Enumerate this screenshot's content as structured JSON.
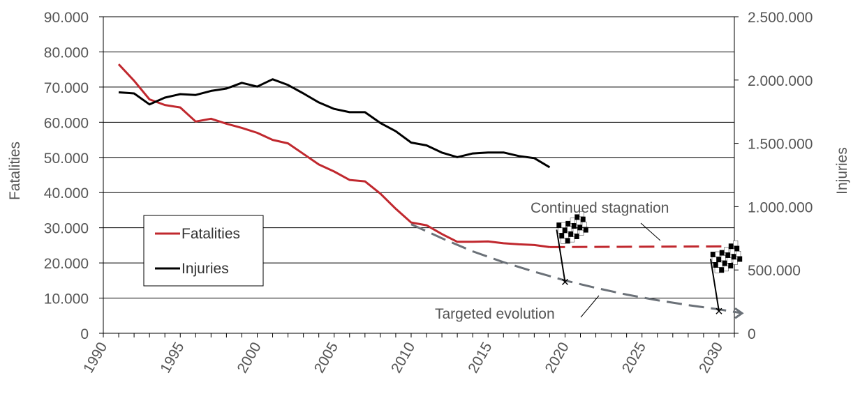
{
  "chart_data": {
    "type": "line",
    "xlabel": "",
    "xlim": [
      1990,
      2031
    ],
    "x_ticks": [
      "1990",
      "1995",
      "2000",
      "2005",
      "2010",
      "2015",
      "2020",
      "2025",
      "2030"
    ],
    "y_left": {
      "label": "Fatalities",
      "ylim": [
        0,
        90000
      ],
      "ticks": [
        "0",
        "10.000",
        "20.000",
        "30.000",
        "40.000",
        "50.000",
        "60.000",
        "70.000",
        "80.000",
        "90.000"
      ]
    },
    "y_right": {
      "label": "Injuries",
      "ylim": [
        0,
        2500000
      ],
      "ticks": [
        "0",
        "500.000",
        "1.000.000",
        "1.500.000",
        "2.000.000",
        "2.500.000"
      ]
    },
    "grid": true,
    "legend": {
      "placement": "left",
      "entries": [
        {
          "label": "Fatalities",
          "color": "#c0282e"
        },
        {
          "label": "Injuries",
          "color": "#000000"
        }
      ]
    },
    "series": [
      {
        "name": "Fatalities",
        "axis": "left",
        "color": "#c0282e",
        "x": [
          1991,
          1992,
          1993,
          1994,
          1995,
          1996,
          1997,
          1998,
          1999,
          2000,
          2001,
          2002,
          2003,
          2004,
          2005,
          2006,
          2007,
          2008,
          2009,
          2010,
          2011,
          2012,
          2013,
          2014,
          2015,
          2016,
          2017,
          2018,
          2019
        ],
        "values": [
          76500,
          71800,
          66500,
          64900,
          64200,
          60200,
          61000,
          59600,
          58400,
          57000,
          55000,
          54000,
          51000,
          48000,
          46000,
          43600,
          43200,
          39700,
          35400,
          31500,
          30700,
          28200,
          26000,
          26000,
          26100,
          25600,
          25300,
          25100,
          24500
        ]
      },
      {
        "name": "Injuries",
        "axis": "right",
        "color": "#000000",
        "x": [
          1991,
          1992,
          1993,
          1994,
          1995,
          1996,
          1997,
          1998,
          1999,
          2000,
          2001,
          2002,
          2003,
          2004,
          2005,
          2006,
          2007,
          2008,
          2009,
          2010,
          2011,
          2012,
          2013,
          2014,
          2015,
          2016,
          2017,
          2018,
          2019
        ],
        "values": [
          1903000,
          1894000,
          1808000,
          1861000,
          1889000,
          1882000,
          1914000,
          1933000,
          1978000,
          1948000,
          2006000,
          1961000,
          1894000,
          1823000,
          1772000,
          1746000,
          1746000,
          1661000,
          1596000,
          1506000,
          1484000,
          1427000,
          1391000,
          1420000,
          1428000,
          1428000,
          1400000,
          1383000,
          1311000
        ]
      },
      {
        "name": "",
        "axis": "left",
        "color": "#c0282e",
        "dashed": true,
        "x": [
          2019,
          2030.5
        ],
        "values": [
          24500,
          24700
        ]
      },
      {
        "name": "",
        "axis": "left",
        "color": "#6b7178",
        "dashed": true,
        "x": [
          2010,
          2012,
          2014,
          2016,
          2018,
          2020,
          2022,
          2024,
          2026,
          2028,
          2030,
          2031.5
        ],
        "values": [
          31000,
          27000,
          23300,
          20200,
          17500,
          15000,
          12900,
          11000,
          9400,
          8000,
          6800,
          5700
        ]
      }
    ],
    "annotations": [
      {
        "text": "Continued stagnation",
        "x": 2023.5,
        "y": 35000
      },
      {
        "text": "Targeted evolution",
        "x": 2018,
        "y": 5500
      }
    ],
    "targets": [
      {
        "x": 2020,
        "y": 14600
      },
      {
        "x": 2030,
        "y": 6300
      }
    ]
  }
}
